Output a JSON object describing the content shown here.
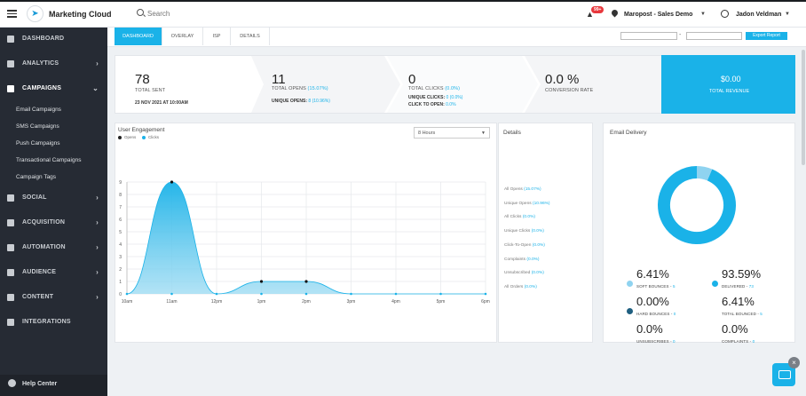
{
  "header": {
    "app_title": "Marketing Cloud",
    "search_placeholder": "Search",
    "notification_count": "99+",
    "account_name": "Maropost - Sales Demo",
    "user_name": "Jadon Veldman"
  },
  "sidebar": {
    "items": [
      {
        "label": "DASHBOARD",
        "icon": "home-icon"
      },
      {
        "label": "ANALYTICS",
        "icon": "chart-icon"
      },
      {
        "label": "CAMPAIGNS",
        "icon": "send-icon"
      },
      {
        "label": "SOCIAL",
        "icon": "megaphone-icon"
      },
      {
        "label": "ACQUISITION",
        "icon": "briefcase-icon"
      },
      {
        "label": "AUTOMATION",
        "icon": "flow-icon"
      },
      {
        "label": "AUDIENCE",
        "icon": "person-icon"
      },
      {
        "label": "CONTENT",
        "icon": "document-icon"
      },
      {
        "label": "INTEGRATIONS",
        "icon": "puzzle-icon"
      }
    ],
    "campaign_subitems": [
      "Email Campaigns",
      "SMS Campaigns",
      "Push Campaigns",
      "Transactional Campaigns",
      "Campaign Tags"
    ],
    "help_label": "Help Center"
  },
  "tabs": [
    "DASHBOARD",
    "OVERLAY",
    "ISP",
    "DETAILS"
  ],
  "toolbar": {
    "export_label": "Export Report"
  },
  "stats": {
    "total_sent": {
      "value": "78",
      "label": "TOTAL SENT",
      "date": "23 NOV 2021 AT 10:00AM"
    },
    "total_opens": {
      "value": "11",
      "label": "TOTAL OPENS",
      "pct": "(15.07%)",
      "unique_label": "UNIQUE OPENS:",
      "unique_value": "8 (10.96%)"
    },
    "total_clicks": {
      "value": "0",
      "label": "TOTAL CLICKS",
      "pct": "(0.0%)",
      "unique_label": "UNIQUE CLICKS:",
      "unique_value": "0 (0.0%)",
      "cto_label": "CLICK TO OPEN:",
      "cto_value": "0.0%"
    },
    "conversion": {
      "value": "0.0 %",
      "label": "CONVERSION RATE"
    },
    "revenue": {
      "value": "$0.00",
      "label": "TOTAL REVENUE"
    }
  },
  "engagement": {
    "title": "User Engagement",
    "legend": [
      "Opens",
      "Clicks"
    ],
    "range_select": "8 Hours"
  },
  "chart_data": {
    "type": "area",
    "title": "",
    "xlabel": "",
    "ylabel": "",
    "categories": [
      "10am",
      "11am",
      "12pm",
      "1pm",
      "2pm",
      "3pm",
      "4pm",
      "5pm",
      "6pm"
    ],
    "ylim": [
      0,
      9
    ],
    "yticks": [
      0,
      1,
      2,
      3,
      4,
      5,
      6,
      7,
      8,
      9
    ],
    "series": [
      {
        "name": "Opens",
        "values": [
          0,
          9,
          0,
          1,
          1,
          0,
          0,
          0,
          0
        ],
        "color": "#1ab2e8"
      },
      {
        "name": "Clicks",
        "values": [
          0,
          0,
          0,
          0,
          0,
          0,
          0,
          0,
          0
        ],
        "color": "#1ab2e8"
      }
    ]
  },
  "details": {
    "title": "Details",
    "lines": [
      {
        "label": "All Opens",
        "value": "(15.07%)"
      },
      {
        "label": "Unique Opens",
        "value": "(10.96%)"
      },
      {
        "label": "All Clicks",
        "value": "(0.0%)"
      },
      {
        "label": "Unique Clicks",
        "value": "(0.0%)"
      },
      {
        "label": "Click-To-Open",
        "value": "(0.0%)"
      },
      {
        "label": "Complaints",
        "value": "(0.0%)"
      },
      {
        "label": "Unsubscribed",
        "value": "(0.0%)"
      },
      {
        "label": "All Orders",
        "value": "(0.0%)"
      }
    ]
  },
  "delivery": {
    "title": "Email Delivery",
    "donut": {
      "delivered_pct": 93.59,
      "bounce_pct": 6.41,
      "delivered_color": "#1ab2e8",
      "bounce_color": "#8fd3f0"
    },
    "metrics": [
      {
        "value": "6.41%",
        "label": "SOFT BOUNCES",
        "count": "5",
        "dot": "#8fd3f0"
      },
      {
        "value": "93.59%",
        "label": "DELIVERED",
        "count": "73",
        "dot": "#1ab2e8"
      },
      {
        "value": "0.00%",
        "label": "HARD BOUNCES",
        "count": "0",
        "dot": "#1f5f80"
      },
      {
        "value": "6.41%",
        "label": "TOTAL BOUNCED",
        "count": "5",
        "dot": ""
      },
      {
        "value": "0.0%",
        "label": "UNSUBSCRIBES",
        "count": "0",
        "dot": ""
      },
      {
        "value": "0.0%",
        "label": "COMPLAINTS",
        "count": "0",
        "dot": ""
      }
    ]
  }
}
